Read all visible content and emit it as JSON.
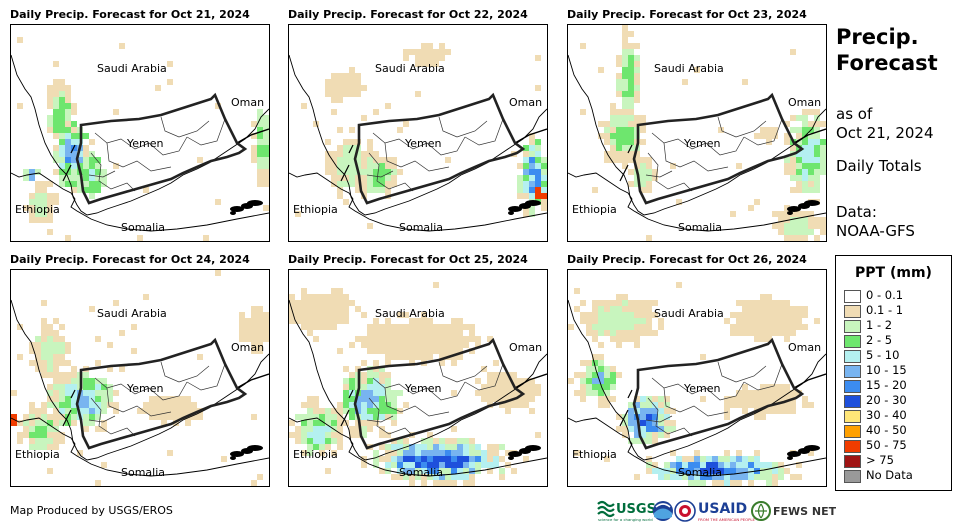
{
  "panels": [
    {
      "title": "Daily Precip. Forecast for Oct 21, 2024",
      "day": 0
    },
    {
      "title": "Daily Precip. Forecast for Oct 22, 2024",
      "day": 1
    },
    {
      "title": "Daily Precip. Forecast for Oct 23, 2024",
      "day": 2
    },
    {
      "title": "Daily Precip. Forecast for Oct 24, 2024",
      "day": 3
    },
    {
      "title": "Daily Precip. Forecast for Oct 25, 2024",
      "day": 4
    },
    {
      "title": "Daily Precip. Forecast for Oct 26, 2024",
      "day": 5
    }
  ],
  "labels": {
    "saudi": "Saudi Arabia",
    "oman": "Oman",
    "yemen": "Yemen",
    "ethiopia": "Ethiopia",
    "somalia": "Somalia"
  },
  "side": {
    "title_line1": "Precip.",
    "title_line2": "Forecast",
    "asof_line1": "as of",
    "asof_line2": "Oct 21, 2024",
    "totals": "Daily Totals",
    "data_line1": "Data:",
    "data_line2": "NOAA-GFS"
  },
  "legend": {
    "title": "PPT (mm)",
    "items": [
      {
        "label": "0 - 0.1",
        "color": "#ffffff"
      },
      {
        "label": "0.1 - 1",
        "color": "#f0dcb4"
      },
      {
        "label": "1 - 2",
        "color": "#c8f5be"
      },
      {
        "label": "2 - 5",
        "color": "#6ee66e"
      },
      {
        "label": "5 - 10",
        "color": "#b4f0f0"
      },
      {
        "label": "10 - 15",
        "color": "#78b4f0"
      },
      {
        "label": "15 - 20",
        "color": "#3c8cf0"
      },
      {
        "label": "20 - 30",
        "color": "#1e50dc"
      },
      {
        "label": "30 - 40",
        "color": "#ffe678"
      },
      {
        "label": "40 - 50",
        "color": "#ffa000"
      },
      {
        "label": "50 - 75",
        "color": "#f03c00"
      },
      {
        "label": "> 75",
        "color": "#a01414"
      },
      {
        "label": "No Data",
        "color": "#999999"
      }
    ]
  },
  "credit": "Map Produced by USGS/EROS",
  "logos": {
    "usgs": "USGS",
    "usgs_tagline": "science for a changing world",
    "usaid": "USAID",
    "usaid_tagline": "FROM THE AMERICAN PEOPLE",
    "fews": "FEWS NET"
  }
}
